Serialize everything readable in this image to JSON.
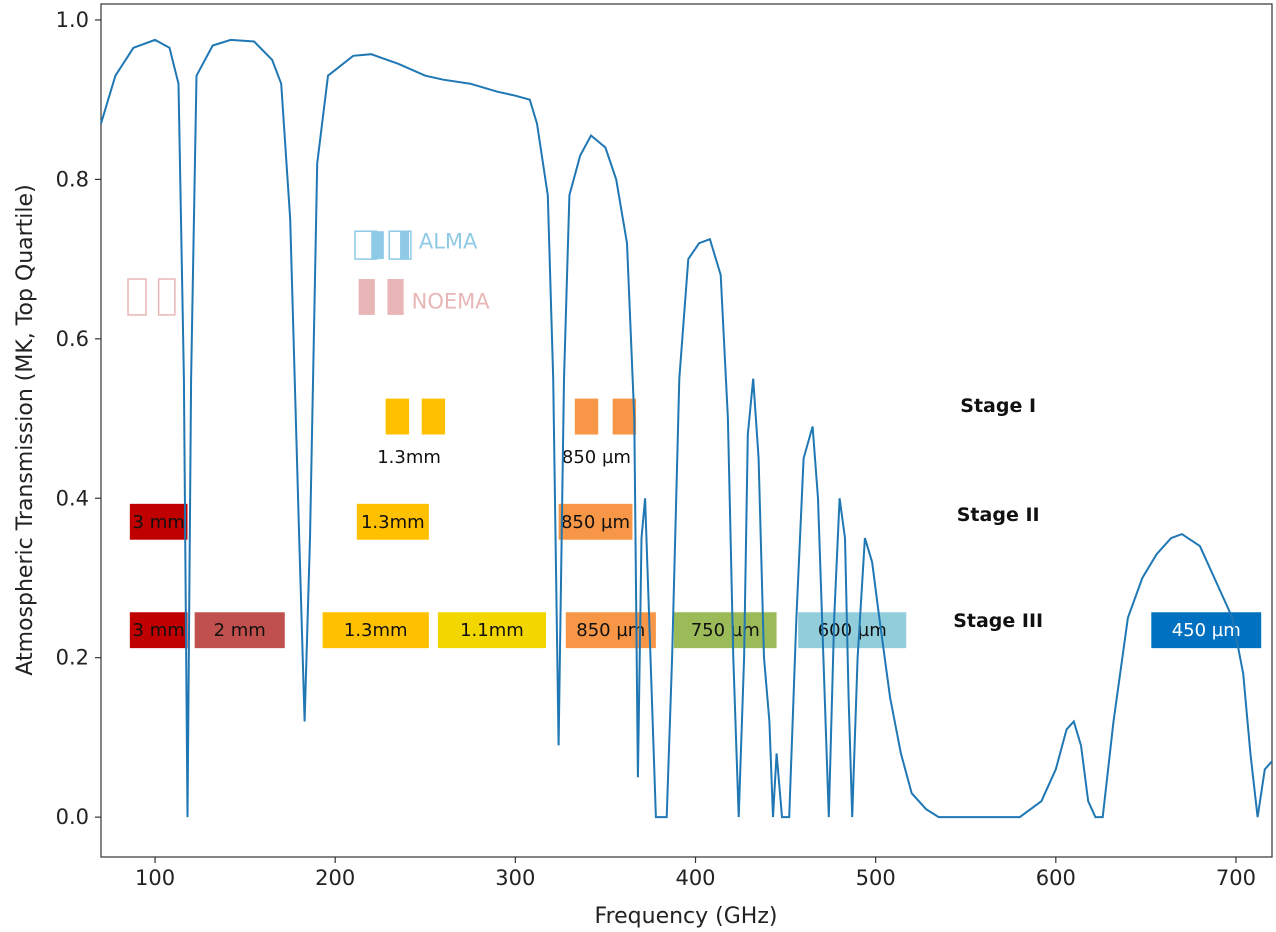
{
  "chart_data": {
    "type": "line",
    "xlabel": "Frequency (GHz)",
    "ylabel": "Atmospheric Transmission (MK, Top Quartile)",
    "xlim": [
      70,
      720
    ],
    "ylim": [
      -0.05,
      1.02
    ],
    "x_ticks": [
      100,
      200,
      300,
      400,
      500,
      600,
      700
    ],
    "x_tick_labels": [
      "100",
      "200",
      "300",
      "400",
      "500",
      "600",
      "700"
    ],
    "y_ticks": [
      0.0,
      0.2,
      0.4,
      0.6,
      0.8,
      1.0
    ],
    "y_tick_labels": [
      "0.0",
      "0.2",
      "0.4",
      "0.6",
      "0.8",
      "1.0"
    ],
    "grid": false,
    "series": [
      {
        "color": "#1f77b4",
        "points": [
          [
            70,
            0.87
          ],
          [
            78,
            0.93
          ],
          [
            88,
            0.965
          ],
          [
            100,
            0.975
          ],
          [
            108,
            0.965
          ],
          [
            113,
            0.92
          ],
          [
            116,
            0.55
          ],
          [
            118,
            0.0
          ],
          [
            120,
            0.55
          ],
          [
            123,
            0.93
          ],
          [
            132,
            0.968
          ],
          [
            142,
            0.975
          ],
          [
            155,
            0.973
          ],
          [
            165,
            0.95
          ],
          [
            170,
            0.92
          ],
          [
            175,
            0.75
          ],
          [
            180,
            0.35
          ],
          [
            183,
            0.12
          ],
          [
            186,
            0.35
          ],
          [
            190,
            0.82
          ],
          [
            196,
            0.93
          ],
          [
            210,
            0.955
          ],
          [
            220,
            0.957
          ],
          [
            235,
            0.945
          ],
          [
            250,
            0.93
          ],
          [
            260,
            0.925
          ],
          [
            275,
            0.92
          ],
          [
            290,
            0.91
          ],
          [
            300,
            0.905
          ],
          [
            308,
            0.9
          ],
          [
            312,
            0.87
          ],
          [
            318,
            0.78
          ],
          [
            321,
            0.55
          ],
          [
            324,
            0.09
          ],
          [
            327,
            0.55
          ],
          [
            330,
            0.78
          ],
          [
            336,
            0.83
          ],
          [
            342,
            0.855
          ],
          [
            350,
            0.84
          ],
          [
            356,
            0.8
          ],
          [
            362,
            0.72
          ],
          [
            366,
            0.5
          ],
          [
            368,
            0.05
          ],
          [
            370,
            0.35
          ],
          [
            372,
            0.4
          ],
          [
            375,
            0.2
          ],
          [
            378,
            0.0
          ],
          [
            384,
            0.0
          ],
          [
            387,
            0.2
          ],
          [
            391,
            0.55
          ],
          [
            396,
            0.7
          ],
          [
            402,
            0.72
          ],
          [
            408,
            0.725
          ],
          [
            414,
            0.68
          ],
          [
            418,
            0.5
          ],
          [
            421,
            0.2
          ],
          [
            424,
            0.0
          ],
          [
            427,
            0.2
          ],
          [
            429,
            0.48
          ],
          [
            432,
            0.55
          ],
          [
            435,
            0.45
          ],
          [
            438,
            0.2
          ],
          [
            441,
            0.12
          ],
          [
            443,
            0.0
          ],
          [
            445,
            0.08
          ],
          [
            448,
            0.0
          ],
          [
            452,
            0.0
          ],
          [
            456,
            0.25
          ],
          [
            460,
            0.45
          ],
          [
            465,
            0.49
          ],
          [
            468,
            0.4
          ],
          [
            471,
            0.2
          ],
          [
            474,
            0.0
          ],
          [
            477,
            0.25
          ],
          [
            480,
            0.4
          ],
          [
            483,
            0.35
          ],
          [
            485,
            0.15
          ],
          [
            487,
            0.0
          ],
          [
            490,
            0.2
          ],
          [
            494,
            0.35
          ],
          [
            498,
            0.32
          ],
          [
            502,
            0.25
          ],
          [
            508,
            0.15
          ],
          [
            514,
            0.08
          ],
          [
            520,
            0.03
          ],
          [
            528,
            0.01
          ],
          [
            535,
            0.0
          ],
          [
            560,
            0.0
          ],
          [
            580,
            0.0
          ],
          [
            592,
            0.02
          ],
          [
            600,
            0.06
          ],
          [
            606,
            0.11
          ],
          [
            610,
            0.12
          ],
          [
            614,
            0.09
          ],
          [
            618,
            0.02
          ],
          [
            622,
            0.0
          ],
          [
            626,
            0.0
          ],
          [
            632,
            0.12
          ],
          [
            640,
            0.25
          ],
          [
            648,
            0.3
          ],
          [
            656,
            0.33
          ],
          [
            664,
            0.35
          ],
          [
            670,
            0.355
          ],
          [
            680,
            0.34
          ],
          [
            690,
            0.29
          ],
          [
            698,
            0.25
          ],
          [
            704,
            0.18
          ],
          [
            708,
            0.08
          ],
          [
            712,
            0.0
          ],
          [
            716,
            0.06
          ],
          [
            720,
            0.07
          ]
        ]
      }
    ],
    "instruments": [
      {
        "name": "ALMA",
        "color": "#8ecae6",
        "rects": [
          [
            211,
            223,
            "outline"
          ],
          [
            220,
            227,
            "fill"
          ],
          [
            230,
            242,
            "outline"
          ],
          [
            236,
            241,
            "fill"
          ]
        ],
        "y": [
          0.7,
          0.735
        ],
        "label_at": 0.722
      },
      {
        "name": "NOEMA",
        "color": "#e8b6b6",
        "rects": [
          [
            85,
            95,
            "outline"
          ],
          [
            102,
            111,
            "outline"
          ],
          [
            213,
            222,
            "fill"
          ],
          [
            229,
            238,
            "fill"
          ]
        ],
        "y": [
          0.63,
          0.675
        ],
        "label_at": 0.647
      }
    ],
    "stages": [
      {
        "name": "Stage I",
        "label_y": 0.517,
        "bands": [
          {
            "x0": 228,
            "x1": 241,
            "y0": 0.48,
            "y1": 0.525,
            "color": "#ffc000",
            "label": ""
          },
          {
            "x0": 248,
            "x1": 261,
            "y0": 0.48,
            "y1": 0.525,
            "color": "#ffc000",
            "label": ""
          },
          {
            "x0": 333,
            "x1": 346,
            "y0": 0.48,
            "y1": 0.525,
            "color": "#f79646",
            "label": ""
          },
          {
            "x0": 354,
            "x1": 367,
            "y0": 0.48,
            "y1": 0.525,
            "color": "#f79646",
            "label": ""
          }
        ],
        "captions": [
          {
            "text": "1.3mm",
            "x": 241,
            "y": 0.452
          },
          {
            "text": "850 µm",
            "x": 345,
            "y": 0.452
          }
        ]
      },
      {
        "name": "Stage II",
        "label_y": 0.38,
        "bands": [
          {
            "x0": 86,
            "x1": 118,
            "y0": 0.348,
            "y1": 0.393,
            "color": "#c00000",
            "label": "3 mm",
            "text_color": "#111"
          },
          {
            "x0": 212,
            "x1": 252,
            "y0": 0.348,
            "y1": 0.393,
            "color": "#ffc000",
            "label": "1.3mm",
            "text_color": "#111"
          },
          {
            "x0": 324,
            "x1": 365,
            "y0": 0.348,
            "y1": 0.393,
            "color": "#f79646",
            "label": "850 µm",
            "text_color": "#111"
          }
        ]
      },
      {
        "name": "Stage III",
        "label_y": 0.247,
        "bands": [
          {
            "x0": 86,
            "x1": 118,
            "y0": 0.212,
            "y1": 0.257,
            "color": "#c00000",
            "label": "3 mm",
            "text_color": "#111"
          },
          {
            "x0": 122,
            "x1": 172,
            "y0": 0.212,
            "y1": 0.257,
            "color": "#c0504d",
            "label": "2 mm",
            "text_color": "#111"
          },
          {
            "x0": 193,
            "x1": 252,
            "y0": 0.212,
            "y1": 0.257,
            "color": "#ffc000",
            "label": "1.3mm",
            "text_color": "#111"
          },
          {
            "x0": 257,
            "x1": 317,
            "y0": 0.212,
            "y1": 0.257,
            "color": "#f2d600",
            "label": "1.1mm",
            "text_color": "#111"
          },
          {
            "x0": 328,
            "x1": 378,
            "y0": 0.212,
            "y1": 0.257,
            "color": "#f79646",
            "label": "850 µm",
            "text_color": "#111"
          },
          {
            "x0": 388,
            "x1": 445,
            "y0": 0.212,
            "y1": 0.257,
            "color": "#9bbb59",
            "label": "750 µm",
            "text_color": "#111"
          },
          {
            "x0": 457,
            "x1": 517,
            "y0": 0.212,
            "y1": 0.257,
            "color": "#92cddc",
            "label": "600 µm",
            "text_color": "#111"
          },
          {
            "x0": 653,
            "x1": 714,
            "y0": 0.212,
            "y1": 0.257,
            "color": "#0070c0",
            "label": "450 µm",
            "text_color": "#ffffff"
          }
        ]
      }
    ]
  }
}
